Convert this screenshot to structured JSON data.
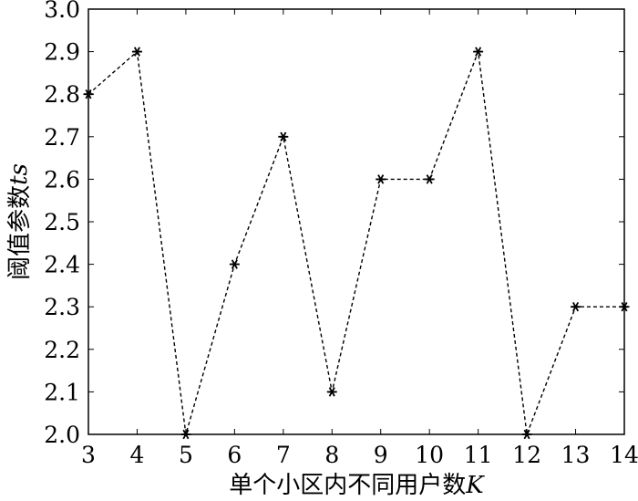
{
  "chart_data": {
    "type": "line",
    "title": "",
    "xlabel": "单个小区内不同用户数",
    "xlabel_var": "K",
    "ylabel": "阈值参数",
    "ylabel_var": "ts",
    "x": [
      3,
      4,
      5,
      6,
      7,
      8,
      9,
      10,
      11,
      12,
      13,
      14
    ],
    "series": [
      {
        "values": [
          2.8,
          2.9,
          2.0,
          2.4,
          2.7,
          2.1,
          2.6,
          2.6,
          2.9,
          2.0,
          2.3,
          2.3
        ]
      }
    ],
    "xlim": [
      3,
      14
    ],
    "ylim": [
      2.0,
      3.0
    ],
    "xticks": [
      "3",
      "4",
      "5",
      "6",
      "7",
      "8",
      "9",
      "10",
      "11",
      "12",
      "13",
      "14"
    ],
    "yticks": [
      "2.0",
      "2.1",
      "2.2",
      "2.3",
      "2.4",
      "2.5",
      "2.6",
      "2.7",
      "2.8",
      "2.9",
      "3.0"
    ],
    "line_style": "dashed",
    "marker": "asterisk",
    "grid": false,
    "colors": {
      "line": "#000000",
      "axes": "#000000"
    }
  }
}
